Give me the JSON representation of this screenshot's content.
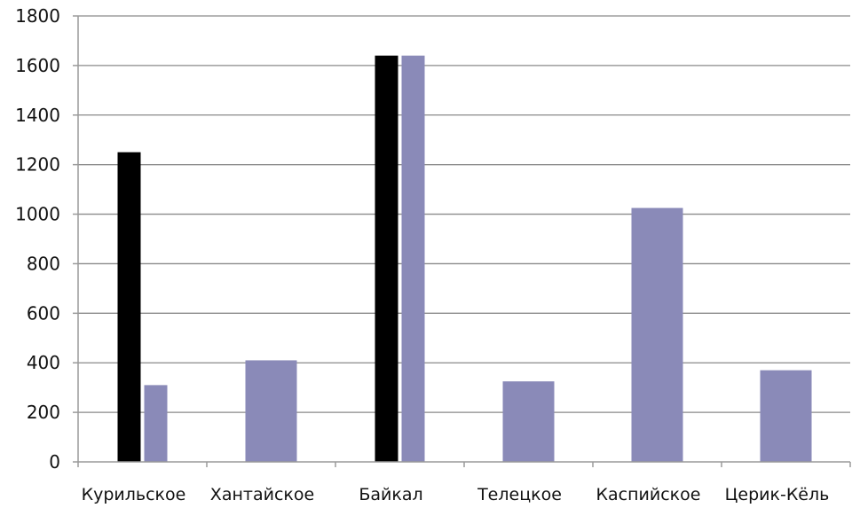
{
  "chart_data": {
    "type": "bar",
    "title": "",
    "xlabel": "",
    "ylabel": "",
    "categories": [
      "Курильское",
      "Хантайское",
      "Байкал",
      "Телецкое",
      "Каспийское",
      "Церик-Кёль"
    ],
    "series": [
      {
        "values": [
          1250,
          null,
          1640,
          null,
          null,
          null
        ],
        "color": "#000000"
      },
      {
        "values": [
          310,
          410,
          1640,
          325,
          1025,
          370
        ],
        "color": "#8a8ab8"
      }
    ],
    "ylim": [
      0,
      1800
    ],
    "yticks": [
      0,
      200,
      400,
      600,
      800,
      1000,
      1200,
      1400,
      1600,
      1800
    ],
    "grid": true,
    "legend": "none"
  }
}
